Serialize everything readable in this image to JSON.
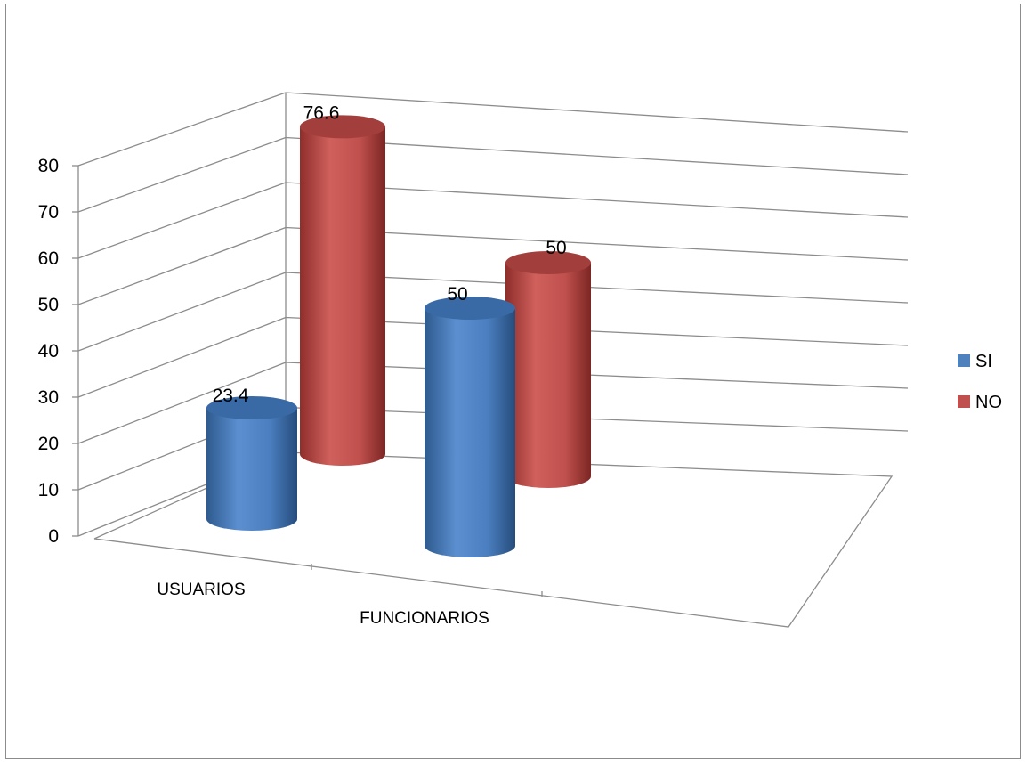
{
  "chart_data": {
    "type": "bar",
    "style": "3d-cylinder",
    "categories": [
      "USUARIOS",
      "FUNCIONARIOS"
    ],
    "series": [
      {
        "name": "SI",
        "values": [
          23.4,
          50
        ],
        "color": "#4f81bd"
      },
      {
        "name": "NO",
        "values": [
          76.6,
          50
        ],
        "color": "#c0504d"
      }
    ],
    "title": "",
    "xlabel": "",
    "ylabel": "",
    "ylim": [
      0,
      80
    ],
    "yticks": [
      "0",
      "10",
      "20",
      "30",
      "40",
      "50",
      "60",
      "70",
      "80"
    ],
    "data_labels": [
      "23.4",
      "50",
      "76.6",
      "50"
    ],
    "grid": true,
    "legend_position": "right"
  }
}
